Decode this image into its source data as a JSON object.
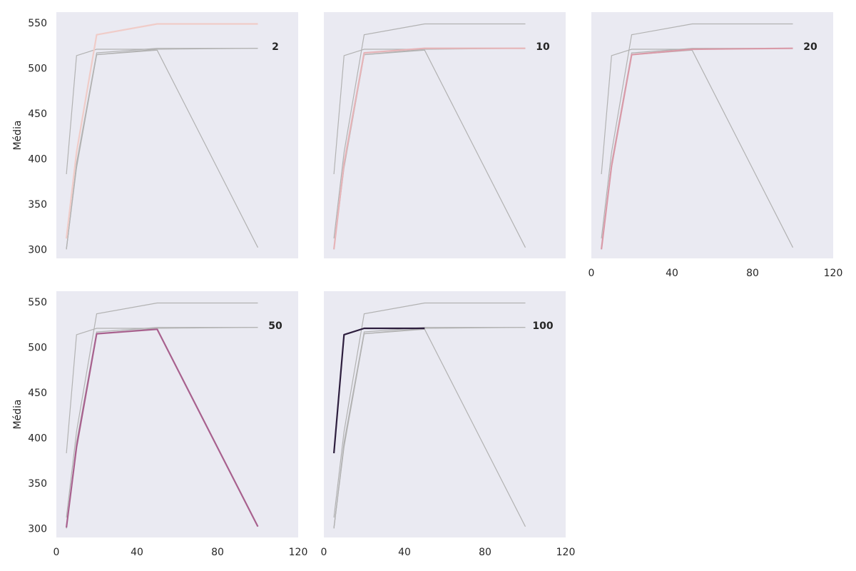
{
  "chart_data": {
    "type": "line",
    "layout": "facet-grid",
    "ylabel": "Média",
    "xlim": [
      0,
      120
    ],
    "ylim": [
      290,
      562
    ],
    "xticks": [
      0,
      40,
      80,
      120
    ],
    "yticks": [
      300,
      350,
      400,
      450,
      500,
      550
    ],
    "grid": false,
    "background_color": "#eaeaf2",
    "context_line_color": "#b2b2b2",
    "series": [
      {
        "name": "2",
        "color": "#f0ccc8",
        "x": [
          5,
          10,
          20,
          50,
          100
        ],
        "y": [
          312,
          407,
          537,
          549,
          549
        ]
      },
      {
        "name": "10",
        "color": "#e6b4b8",
        "x": [
          5,
          10,
          20,
          50,
          100
        ],
        "y": [
          300,
          395,
          517,
          522,
          522
        ]
      },
      {
        "name": "20",
        "color": "#d99aa8",
        "x": [
          5,
          10,
          20,
          50,
          100
        ],
        "y": [
          300,
          392,
          515,
          521,
          522
        ]
      },
      {
        "name": "50",
        "color": "#a8618e",
        "x": [
          5,
          10,
          20,
          50,
          100
        ],
        "y": [
          301,
          390,
          515,
          520,
          302
        ]
      },
      {
        "name": "100",
        "color": "#2d1e3e",
        "x": [
          5,
          10,
          20,
          50
        ],
        "y": [
          383,
          514,
          521,
          521
        ]
      }
    ]
  }
}
